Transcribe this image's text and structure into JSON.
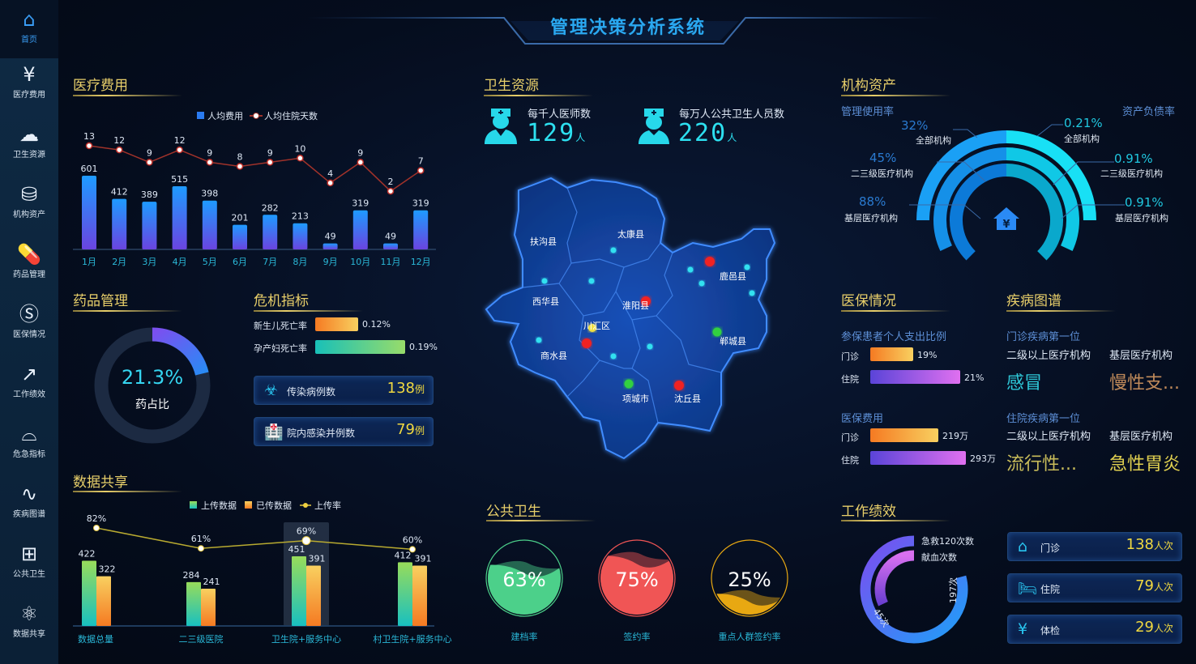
{
  "title": "管理决策分析系统",
  "sidebar": {
    "items": [
      {
        "label": "首页",
        "icon": "home-icon",
        "glyph": "⌂"
      },
      {
        "label": "医疗费用",
        "icon": "yen-house-icon",
        "glyph": "¥"
      },
      {
        "label": "卫生资源",
        "icon": "cloud-icon",
        "glyph": "☁"
      },
      {
        "label": "机构资产",
        "icon": "coin-stack-icon",
        "glyph": "⛁"
      },
      {
        "label": "药品管理",
        "icon": "pill-icon",
        "glyph": "💊"
      },
      {
        "label": "医保情况",
        "icon": "si-logo-icon",
        "glyph": "Ⓢ"
      },
      {
        "label": "工作绩效",
        "icon": "trend-chart-icon",
        "glyph": "↗"
      },
      {
        "label": "危急指标",
        "icon": "alarm-bell-icon",
        "glyph": "⌓"
      },
      {
        "label": "疾病图谱",
        "icon": "line-chart-icon",
        "glyph": "∿"
      },
      {
        "label": "公共卫生",
        "icon": "medical-kit-icon",
        "glyph": "⊞"
      },
      {
        "label": "数据共享",
        "icon": "atom-icon",
        "glyph": "⚛"
      }
    ]
  },
  "medical_cost": {
    "title": "医疗费用"
  },
  "chart_data": [
    {
      "type": "bar",
      "title": "",
      "categories": [
        "1月",
        "2月",
        "3月",
        "4月",
        "5月",
        "6月",
        "7月",
        "8月",
        "9月",
        "10月",
        "11月",
        "12月"
      ],
      "series": [
        {
          "name": "人均费用",
          "type": "bar",
          "values": [
            601,
            412,
            389,
            515,
            398,
            201,
            282,
            213,
            49,
            319,
            49,
            319
          ]
        },
        {
          "name": "人均住院天数",
          "type": "line",
          "values": [
            13,
            12,
            9,
            12,
            9,
            8,
            9,
            10,
            4,
            9,
            2,
            7
          ]
        }
      ],
      "colors": {
        "bar_top": "#1e9bff",
        "bar_bottom": "#6a44e0",
        "line": "#a0322a"
      }
    },
    {
      "type": "bar",
      "title": "",
      "categories": [
        "数据总量",
        "二三级医院",
        "卫生院+服务中心",
        "村卫生院+服务中心"
      ],
      "series": [
        {
          "name": "上传数据",
          "type": "bar",
          "values": [
            422,
            284,
            451,
            412
          ]
        },
        {
          "name": "已传数据",
          "type": "bar",
          "values": [
            322,
            241,
            391,
            391
          ]
        },
        {
          "name": "上传率",
          "type": "line",
          "values": [
            82,
            61,
            69,
            60
          ],
          "unit": "%"
        }
      ],
      "highlighted_category": "卫生院+服务中心"
    }
  ],
  "drug": {
    "title": "药品管理",
    "value": "21.3%",
    "fraction": 0.213,
    "label": "药占比"
  },
  "crisis": {
    "title": "危机指标",
    "bars": [
      {
        "label": "新生儿死亡率",
        "value": "0.12%",
        "fraction": 0.48
      },
      {
        "label": "孕产妇死亡率",
        "value": "0.19%",
        "fraction": 1.0
      }
    ],
    "cards": [
      {
        "label": "传染病例数",
        "value": "138",
        "unit": "例",
        "icon": "virus-icon"
      },
      {
        "label": "院内感染并例数",
        "value": "79",
        "unit": "例",
        "icon": "hospital-icon"
      }
    ]
  },
  "data_share": {
    "title": "数据共享"
  },
  "health_resources": {
    "title": "卫生资源",
    "stats": [
      {
        "label": "每千人医师数",
        "value": "129",
        "unit": "人",
        "icon": "doctor-icon"
      },
      {
        "label": "每万人公共卫生人员数",
        "value": "220",
        "unit": "人",
        "icon": "nurse-icon"
      }
    ]
  },
  "map": {
    "regions": [
      "扶沟县",
      "太康县",
      "鹿邑县",
      "西华县",
      "淮阳县",
      "川汇区",
      "商水县",
      "郸城县",
      "项城市",
      "沈丘县"
    ]
  },
  "public_health": {
    "title": "公共卫生",
    "gauges": [
      {
        "label": "建档率",
        "value": "63%",
        "fraction": 0.63,
        "color": "#4cd08a"
      },
      {
        "label": "签约率",
        "value": "75%",
        "fraction": 0.75,
        "color": "#f05555"
      },
      {
        "label": "重点人群签约率",
        "value": "25%",
        "fraction": 0.25,
        "color": "#e8a812"
      }
    ]
  },
  "assets": {
    "title": "机构资产",
    "left_title": "管理使用率",
    "right_title": "资产负债率",
    "left": [
      {
        "value": "32%",
        "label": "全部机构"
      },
      {
        "value": "45%",
        "label": "二三级医疗机构"
      },
      {
        "value": "88%",
        "label": "基层医疗机构"
      }
    ],
    "right": [
      {
        "value": "0.21%",
        "label": "全部机构"
      },
      {
        "value": "0.91%",
        "label": "二三级医疗机构"
      },
      {
        "value": "0.91%",
        "label": "基层医疗机构"
      }
    ]
  },
  "insurance": {
    "title": "医保情况",
    "ratio": {
      "title": "参保患者个人支出比例",
      "rows": [
        {
          "label": "门诊",
          "value": "19%"
        },
        {
          "label": "住院",
          "value": "21%"
        }
      ]
    },
    "cost": {
      "title": "医保费用",
      "rows": [
        {
          "label": "门诊",
          "value": "219万"
        },
        {
          "label": "住院",
          "value": "293万"
        }
      ]
    }
  },
  "disease": {
    "title": "疾病图谱",
    "outpatient": {
      "title": "门诊疾病第一位",
      "col1": "二级以上医疗机构",
      "col2": "基层医疗机构",
      "v1": "感冒",
      "v2": "慢性支..."
    },
    "inpatient": {
      "title": "住院疾病第一位",
      "col1": "二级以上医疗机构",
      "col2": "基层医疗机构",
      "v1": "流行性...",
      "v2": "急性胃炎"
    }
  },
  "performance": {
    "title": "工作绩效",
    "ring": {
      "labels": [
        "急救120次数",
        "献血次数"
      ],
      "values": [
        "197次",
        "45次"
      ]
    },
    "cards": [
      {
        "label": "门诊",
        "value": "138",
        "unit": "人次",
        "icon": "clinic-icon"
      },
      {
        "label": "住院",
        "value": "79",
        "unit": "人次",
        "icon": "bed-icon"
      },
      {
        "label": "体检",
        "value": "29",
        "unit": "人次",
        "icon": "checkup-icon"
      }
    ]
  }
}
